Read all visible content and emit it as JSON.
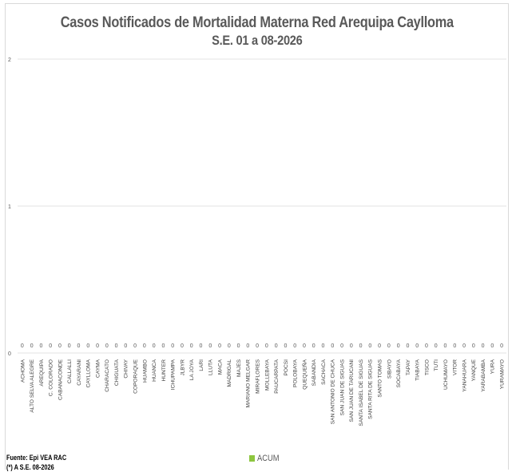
{
  "chart_data": {
    "type": "bar",
    "title": "Casos  Notificados de Mortalidad Materna Red Arequipa Caylloma",
    "subtitle": "S.E.  01 a 08-2026",
    "ylim": [
      0,
      2
    ],
    "yticks": [
      0,
      1,
      2
    ],
    "grid": true,
    "legend_position": "bottom",
    "categories": [
      "ACHOMA",
      "ALTO SELVA ALEGRE",
      "AREQUIPA",
      "C. COLORADO",
      "CABANACONDE",
      "CALLALLI",
      "CAYARANI",
      "CAYLLOMA",
      "CAYMA",
      "CHARACATO",
      "CHIGUATA",
      "CHIVAY",
      "COPORAQUE",
      "HUAMBO",
      "HUANCA",
      "HUNTER",
      "ICHUPAMPA",
      "JLBYR",
      "LA JOYA",
      "LARI",
      "LLUTA",
      "MACA",
      "MADRIGAL",
      "MAJES",
      "MARIANO MELGAR",
      "MIRAFLORES",
      "MOLLEBAYA",
      "PAUCARPATA",
      "POCSI",
      "POLOBAYA",
      "QUEQUEÑA",
      "SABANDIA",
      "SACHACA",
      "SAN ANTONIO DE CHUCA",
      "SAN JUAN DE SIGUAS",
      "SAN JUAN DE TARUCANI",
      "SANTA ISABEL DE SIGUAS",
      "SANTA RITA DE SIGUAS",
      "SANTO TOMAS",
      "SIBAYO",
      "SOCABAYA",
      "TAPAY",
      "TIABAYA",
      "TISCO",
      "TUTI",
      "UCHUMAYO",
      "VITOR",
      "YANAHUARA",
      "YANQUE",
      "YARABAMBA",
      "YURA",
      "YURAMAYO"
    ],
    "series": [
      {
        "name": "ACUM",
        "color": "#8dc63f",
        "values": [
          0,
          0,
          0,
          0,
          0,
          0,
          0,
          0,
          0,
          0,
          0,
          0,
          0,
          0,
          0,
          0,
          0,
          0,
          0,
          0,
          0,
          0,
          0,
          0,
          0,
          0,
          0,
          0,
          0,
          0,
          0,
          0,
          0,
          0,
          0,
          0,
          0,
          0,
          0,
          0,
          0,
          0,
          0,
          0,
          0,
          0,
          0,
          0,
          0,
          0,
          0,
          0
        ]
      }
    ]
  },
  "footer": {
    "source": "Fuente: Epi VEA RAC",
    "note": "(*) A S.E. 08-2026"
  }
}
